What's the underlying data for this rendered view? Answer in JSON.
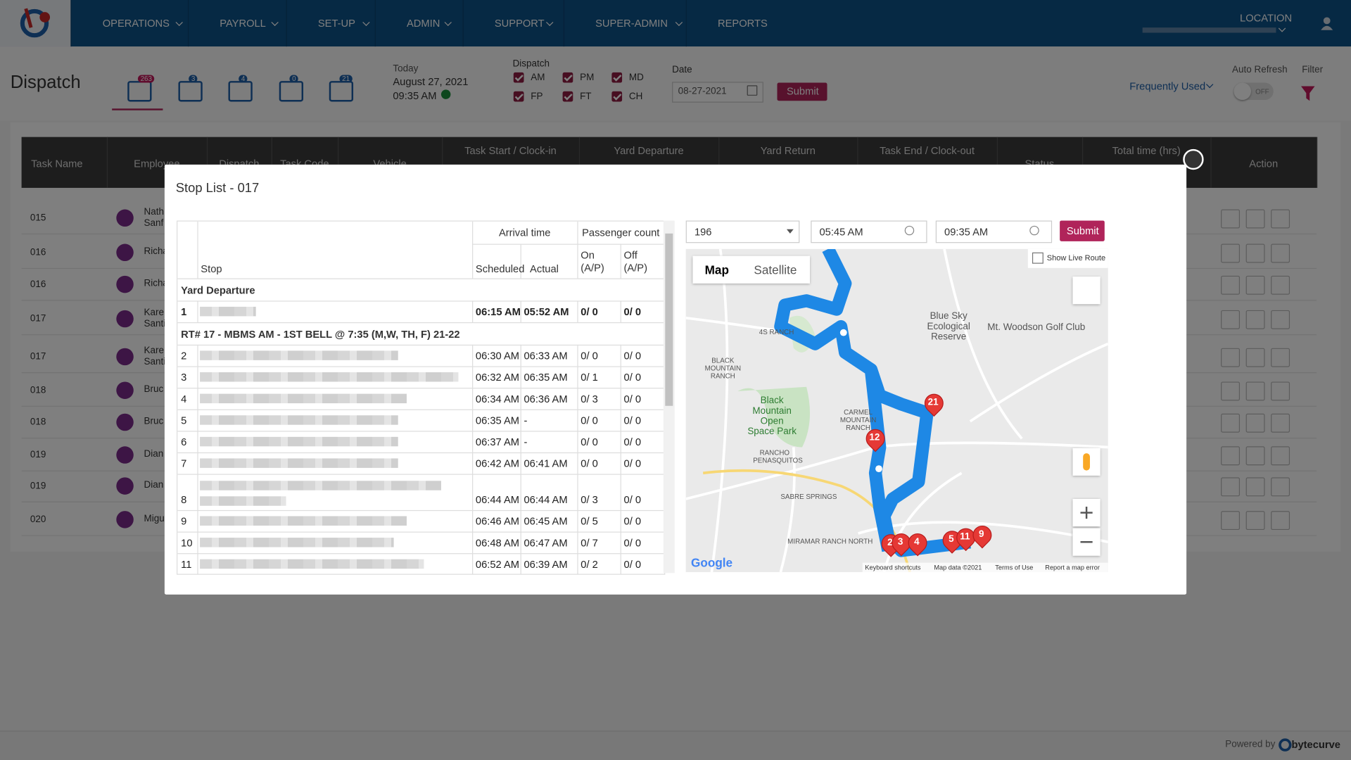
{
  "nav": {
    "items": [
      "OPERATIONS",
      "PAYROLL",
      "SET-UP",
      "ADMIN",
      "SUPPORT",
      "SUPER-ADMIN",
      "REPORTS"
    ],
    "location": "LOCATION"
  },
  "toolbar": {
    "title": "Dispatch",
    "tab_badges": [
      263,
      3,
      4,
      0,
      21
    ],
    "today_label": "Today",
    "date": "August 27, 2021",
    "time": "09:35 AM",
    "dispatch_label": "Dispatch",
    "dispatch_options": [
      "AM",
      "PM",
      "MD",
      "FP",
      "FT",
      "CH"
    ],
    "date_label": "Date",
    "date_value": "08-27-2021",
    "submit": "Submit",
    "frequently_used": "Frequently Used",
    "auto_refresh": "Auto Refresh",
    "toggle": "OFF",
    "filter": "Filter"
  },
  "table": {
    "headers": [
      "Task Name",
      "Employee",
      "Dispatch",
      "Task Code",
      "Vehicle",
      "Task Start / Clock-in",
      "Yard Departure",
      "Yard Return",
      "Task End / Clock-out",
      "Status",
      "Total time (hrs)",
      "Action"
    ],
    "rows": [
      {
        "task": "015",
        "name": [
          "Nath",
          "Sanf"
        ]
      },
      {
        "task": "016",
        "name": [
          "Richa"
        ]
      },
      {
        "task": "016",
        "name": [
          "Richa"
        ]
      },
      {
        "task": "017",
        "name": [
          "Kare",
          "Santi"
        ]
      },
      {
        "task": "017",
        "name": [
          "Kare",
          "Santi"
        ]
      },
      {
        "task": "018",
        "name": [
          "Bruc"
        ]
      },
      {
        "task": "018",
        "name": [
          "Bruc"
        ]
      },
      {
        "task": "019",
        "name": [
          "Dian"
        ]
      },
      {
        "task": "019",
        "name": [
          "Dian"
        ]
      },
      {
        "task": "020",
        "name": [
          "Migu"
        ]
      }
    ]
  },
  "modal": {
    "title": "Stop List - 017",
    "columns": {
      "stop": "Stop",
      "arrival": "Arrival time",
      "passenger": "Passenger count",
      "scheduled": "Scheduled",
      "actual": "Actual",
      "on": "On (A/P)",
      "off": "Off (A/P)"
    },
    "sections": [
      {
        "title": "Yard Departure",
        "rows": [
          [
            "1",
            "06:15 AM",
            "05:52 AM",
            "0/ 0",
            "0/ 0"
          ]
        ]
      },
      {
        "title": "RT# 17 - MBMS AM - 1ST BELL @ 7:35 (M,W, TH, F) 21-22",
        "rows": [
          [
            "2",
            "06:30 AM",
            "06:33 AM",
            "0/ 0",
            "0/ 0"
          ],
          [
            "3",
            "06:32 AM",
            "06:35 AM",
            "0/ 1",
            "0/ 0"
          ],
          [
            "4",
            "06:34 AM",
            "06:36 AM",
            "0/ 3",
            "0/ 0"
          ],
          [
            "5",
            "06:35 AM",
            "-",
            "0/ 0",
            "0/ 0"
          ],
          [
            "6",
            "06:37 AM",
            "-",
            "0/ 0",
            "0/ 0"
          ],
          [
            "7",
            "06:42 AM",
            "06:41 AM",
            "0/ 0",
            "0/ 0"
          ],
          [
            "8",
            "06:44 AM",
            "06:44 AM",
            "0/ 3",
            "0/ 0"
          ],
          [
            "9",
            "06:46 AM",
            "06:45 AM",
            "0/ 5",
            "0/ 0"
          ],
          [
            "10",
            "06:48 AM",
            "06:47 AM",
            "0/ 7",
            "0/ 0"
          ],
          [
            "11",
            "06:52 AM",
            "06:39 AM",
            "0/ 2",
            "0/ 0"
          ]
        ]
      }
    ],
    "route_select": "196",
    "start_time": "05:45 AM",
    "end_time": "09:35 AM",
    "submit": "Submit",
    "show_live_route": "Show Live Route",
    "map": {
      "tabs": [
        "Map",
        "Satellite"
      ],
      "labels": [
        "Blue Sky Ecological Reserve",
        "Mt. Woodson Golf Club",
        "BLACK MOUNTAIN RANCH",
        "Black Mountain Open Space Park",
        "CARMEL MOUNTAIN RANCH",
        "RANCHO PENASQUITOS",
        "SABRE SPRINGS",
        "MIRAMAR RANCH NORTH",
        "4S RANCH"
      ],
      "markers": [
        "2",
        "3",
        "4",
        "5",
        "11",
        "9",
        "12",
        "21"
      ],
      "brand": "Google",
      "footer": [
        "Keyboard shortcuts",
        "Map data ©2021",
        "Terms of Use",
        "Report a map error"
      ]
    }
  },
  "footer": {
    "powered": "Powered by",
    "brand": "bytecurve"
  }
}
